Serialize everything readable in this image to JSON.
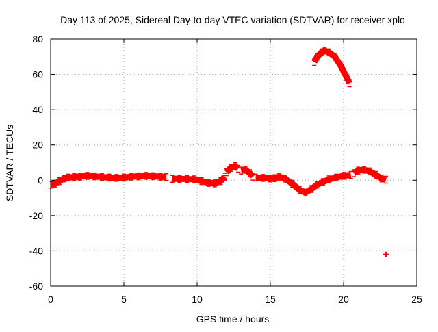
{
  "chart_data": {
    "type": "scatter",
    "title": "Day 113 of 2025, Sidereal Day-to-day VTEC variation (SDTVAR) for receiver xplo",
    "xlabel": "GPS time / hours",
    "ylabel": "SDTVAR / TECUs",
    "xlim": [
      0,
      25
    ],
    "ylim": [
      -60,
      80
    ],
    "xticks": [
      0,
      5,
      10,
      15,
      20,
      25
    ],
    "yticks": [
      -60,
      -40,
      -20,
      0,
      20,
      40,
      60,
      80
    ],
    "xtick_labels": [
      "0",
      "5",
      "10",
      "15",
      "20",
      "25"
    ],
    "ytick_labels": [
      "-60",
      "-40",
      "-20",
      "0",
      "20",
      "40",
      "60",
      "80"
    ],
    "grid": true,
    "marker_color": "#ff0000",
    "series": [
      {
        "name": "SDTVAR",
        "segments": [
          [
            [
              0.0,
              -2.5
            ],
            [
              0.3,
              -2.0
            ],
            [
              0.6,
              -0.5
            ],
            [
              0.9,
              1.0
            ],
            [
              1.2,
              1.5
            ],
            [
              1.6,
              1.8
            ],
            [
              2.0,
              2.0
            ],
            [
              2.5,
              2.5
            ],
            [
              3.0,
              2.2
            ],
            [
              3.5,
              1.8
            ],
            [
              4.0,
              1.5
            ],
            [
              4.5,
              1.3
            ],
            [
              5.0,
              1.5
            ],
            [
              5.5,
              2.0
            ],
            [
              6.0,
              2.2
            ],
            [
              6.5,
              2.5
            ],
            [
              7.0,
              2.3
            ],
            [
              7.5,
              2.0
            ],
            [
              7.9,
              1.8
            ]
          ],
          [
            [
              8.3,
              0.8
            ],
            [
              8.8,
              0.8
            ],
            [
              9.3,
              0.7
            ],
            [
              9.8,
              0.5
            ],
            [
              10.3,
              -0.5
            ],
            [
              10.8,
              -1.5
            ],
            [
              11.2,
              -1.8
            ],
            [
              11.6,
              -0.5
            ],
            [
              11.9,
              2.0
            ]
          ],
          [
            [
              12.0,
              4.5
            ],
            [
              12.3,
              7.0
            ],
            [
              12.6,
              8.0
            ],
            [
              12.8,
              6.5
            ]
          ],
          [
            [
              13.0,
              5.5
            ],
            [
              13.3,
              6.0
            ],
            [
              13.6,
              4.0
            ],
            [
              13.8,
              2.0
            ]
          ],
          [
            [
              14.0,
              1.5
            ],
            [
              14.5,
              1.3
            ],
            [
              15.0,
              1.0
            ],
            [
              15.3,
              1.2
            ],
            [
              15.6,
              2.0
            ],
            [
              16.0,
              1.0
            ],
            [
              16.5,
              -2.0
            ],
            [
              17.0,
              -5.5
            ],
            [
              17.4,
              -7.0
            ],
            [
              17.8,
              -5.0
            ],
            [
              18.2,
              -2.5
            ],
            [
              18.6,
              -1.0
            ],
            [
              19.0,
              0.5
            ],
            [
              19.5,
              1.5
            ],
            [
              20.0,
              2.5
            ],
            [
              20.5,
              3.0
            ]
          ],
          [
            [
              20.7,
              4.0
            ],
            [
              21.0,
              5.5
            ],
            [
              21.4,
              6.0
            ],
            [
              21.8,
              5.0
            ],
            [
              22.2,
              3.0
            ],
            [
              22.6,
              1.0
            ],
            [
              22.9,
              0.3
            ]
          ],
          [
            [
              18.0,
              67.0
            ],
            [
              18.2,
              70.0
            ],
            [
              18.5,
              72.5
            ],
            [
              18.7,
              73.5
            ],
            [
              19.0,
              72.5
            ],
            [
              19.4,
              70.0
            ],
            [
              19.8,
              65.0
            ],
            [
              20.2,
              58.5
            ],
            [
              20.4,
              55.0
            ]
          ],
          [
            [
              22.9,
              -42.0
            ]
          ]
        ]
      }
    ]
  }
}
